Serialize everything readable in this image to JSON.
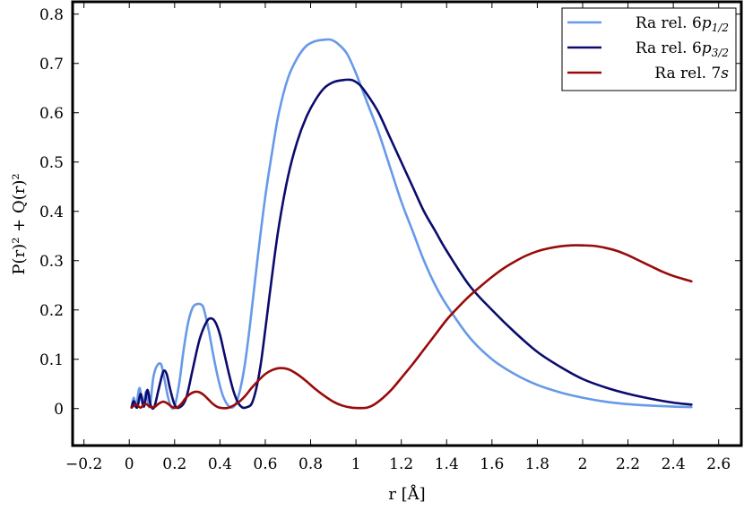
{
  "chart_data": {
    "type": "line",
    "xlabel": "r [Å]",
    "ylabel": "P(r)² + Q(r)²",
    "xlim": [
      -0.25,
      2.7
    ],
    "ylim": [
      -0.075,
      0.825
    ],
    "xticks": [
      -0.2,
      0,
      0.2,
      0.4,
      0.6,
      0.8,
      1,
      1.2,
      1.4,
      1.6,
      1.8,
      2,
      2.2,
      2.4,
      2.6
    ],
    "xtick_labels": [
      "−0.2",
      "0",
      "0.2",
      "0.4",
      "0.6",
      "0.8",
      "1",
      "1.2",
      "1.4",
      "1.6",
      "1.8",
      "2",
      "2.2",
      "2.4",
      "2.6"
    ],
    "yticks": [
      0,
      0.1,
      0.2,
      0.3,
      0.4,
      0.5,
      0.6,
      0.7,
      0.8
    ],
    "ytick_labels": [
      "0",
      "0.1",
      "0.2",
      "0.3",
      "0.4",
      "0.5",
      "0.6",
      "0.7",
      "0.8"
    ],
    "grid": false,
    "legend_position": "top-right",
    "series": [
      {
        "name": "Ra rel. 6p1/2",
        "legend_label": {
          "prefix": "Ra rel. 6",
          "italic": "p",
          "sub": "1/2"
        },
        "color": "#6699e8",
        "x": [
          0.01,
          0.02,
          0.03,
          0.045,
          0.06,
          0.075,
          0.09,
          0.105,
          0.12,
          0.14,
          0.155,
          0.17,
          0.185,
          0.2,
          0.22,
          0.24,
          0.26,
          0.28,
          0.3,
          0.32,
          0.33,
          0.35,
          0.37,
          0.39,
          0.41,
          0.43,
          0.45,
          0.47,
          0.49,
          0.51,
          0.53,
          0.55,
          0.57,
          0.6,
          0.63,
          0.66,
          0.7,
          0.74,
          0.78,
          0.82,
          0.86,
          0.89,
          0.92,
          0.96,
          1.0,
          1.05,
          1.1,
          1.15,
          1.2,
          1.25,
          1.3,
          1.35,
          1.4,
          1.5,
          1.6,
          1.7,
          1.8,
          1.9,
          2.0,
          2.1,
          2.2,
          2.3,
          2.4,
          2.48
        ],
        "y": [
          0.002,
          0.022,
          0.003,
          0.042,
          0.005,
          0.035,
          0.003,
          0.06,
          0.085,
          0.09,
          0.06,
          0.025,
          0.003,
          0.005,
          0.05,
          0.12,
          0.175,
          0.205,
          0.212,
          0.21,
          0.2,
          0.16,
          0.11,
          0.065,
          0.03,
          0.01,
          0.002,
          0.01,
          0.04,
          0.09,
          0.16,
          0.24,
          0.32,
          0.43,
          0.52,
          0.6,
          0.67,
          0.71,
          0.735,
          0.745,
          0.748,
          0.748,
          0.74,
          0.72,
          0.68,
          0.62,
          0.56,
          0.49,
          0.42,
          0.36,
          0.3,
          0.25,
          0.21,
          0.145,
          0.1,
          0.07,
          0.048,
          0.033,
          0.022,
          0.014,
          0.009,
          0.006,
          0.004,
          0.003
        ]
      },
      {
        "name": "Ra rel. 6p3/2",
        "legend_label": {
          "prefix": "Ra rel. 6",
          "italic": "p",
          "sub": "3/2"
        },
        "color": "#0b0b6e",
        "x": [
          0.01,
          0.02,
          0.035,
          0.05,
          0.065,
          0.08,
          0.095,
          0.11,
          0.13,
          0.15,
          0.165,
          0.18,
          0.2,
          0.22,
          0.25,
          0.28,
          0.31,
          0.34,
          0.36,
          0.38,
          0.4,
          0.42,
          0.44,
          0.46,
          0.48,
          0.5,
          0.52,
          0.54,
          0.56,
          0.58,
          0.6,
          0.63,
          0.66,
          0.7,
          0.74,
          0.78,
          0.82,
          0.86,
          0.9,
          0.94,
          0.97,
          0.99,
          1.02,
          1.06,
          1.1,
          1.15,
          1.2,
          1.25,
          1.3,
          1.35,
          1.4,
          1.5,
          1.6,
          1.7,
          1.8,
          1.9,
          2.0,
          2.1,
          2.2,
          2.3,
          2.4,
          2.48
        ],
        "y": [
          0.002,
          0.015,
          0.002,
          0.03,
          0.004,
          0.038,
          0.006,
          0.003,
          0.04,
          0.075,
          0.07,
          0.04,
          0.008,
          0.002,
          0.02,
          0.08,
          0.14,
          0.175,
          0.183,
          0.175,
          0.15,
          0.11,
          0.07,
          0.035,
          0.012,
          0.002,
          0.003,
          0.01,
          0.04,
          0.09,
          0.16,
          0.27,
          0.37,
          0.47,
          0.54,
          0.59,
          0.625,
          0.65,
          0.662,
          0.666,
          0.667,
          0.665,
          0.655,
          0.63,
          0.6,
          0.55,
          0.5,
          0.45,
          0.4,
          0.36,
          0.32,
          0.25,
          0.2,
          0.155,
          0.115,
          0.085,
          0.06,
          0.043,
          0.03,
          0.02,
          0.012,
          0.008
        ]
      },
      {
        "name": "Ra rel. 7s",
        "legend_label": {
          "prefix": "Ra rel. 7",
          "italic": "s",
          "sub": ""
        },
        "color": "#990a0a",
        "x": [
          0.01,
          0.03,
          0.05,
          0.07,
          0.09,
          0.11,
          0.13,
          0.15,
          0.17,
          0.19,
          0.21,
          0.23,
          0.25,
          0.27,
          0.29,
          0.31,
          0.33,
          0.35,
          0.37,
          0.39,
          0.41,
          0.43,
          0.45,
          0.48,
          0.51,
          0.54,
          0.57,
          0.6,
          0.63,
          0.66,
          0.7,
          0.74,
          0.78,
          0.82,
          0.86,
          0.9,
          0.94,
          0.98,
          1.02,
          1.05,
          1.08,
          1.12,
          1.16,
          1.2,
          1.25,
          1.3,
          1.35,
          1.4,
          1.45,
          1.5,
          1.55,
          1.6,
          1.65,
          1.7,
          1.75,
          1.8,
          1.85,
          1.9,
          1.95,
          2.0,
          2.05,
          2.1,
          2.15,
          2.2,
          2.25,
          2.3,
          2.35,
          2.4,
          2.48
        ],
        "y": [
          0.002,
          0.008,
          0.002,
          0.01,
          0.004,
          0.003,
          0.01,
          0.014,
          0.01,
          0.003,
          0.002,
          0.01,
          0.022,
          0.03,
          0.034,
          0.033,
          0.027,
          0.018,
          0.009,
          0.003,
          0.001,
          0.001,
          0.004,
          0.012,
          0.025,
          0.042,
          0.057,
          0.07,
          0.078,
          0.082,
          0.08,
          0.07,
          0.056,
          0.04,
          0.026,
          0.014,
          0.006,
          0.002,
          0.001,
          0.002,
          0.008,
          0.022,
          0.04,
          0.062,
          0.09,
          0.12,
          0.15,
          0.18,
          0.205,
          0.228,
          0.248,
          0.267,
          0.284,
          0.298,
          0.31,
          0.319,
          0.325,
          0.329,
          0.331,
          0.331,
          0.33,
          0.326,
          0.32,
          0.311,
          0.3,
          0.289,
          0.278,
          0.269,
          0.258
        ]
      }
    ]
  }
}
